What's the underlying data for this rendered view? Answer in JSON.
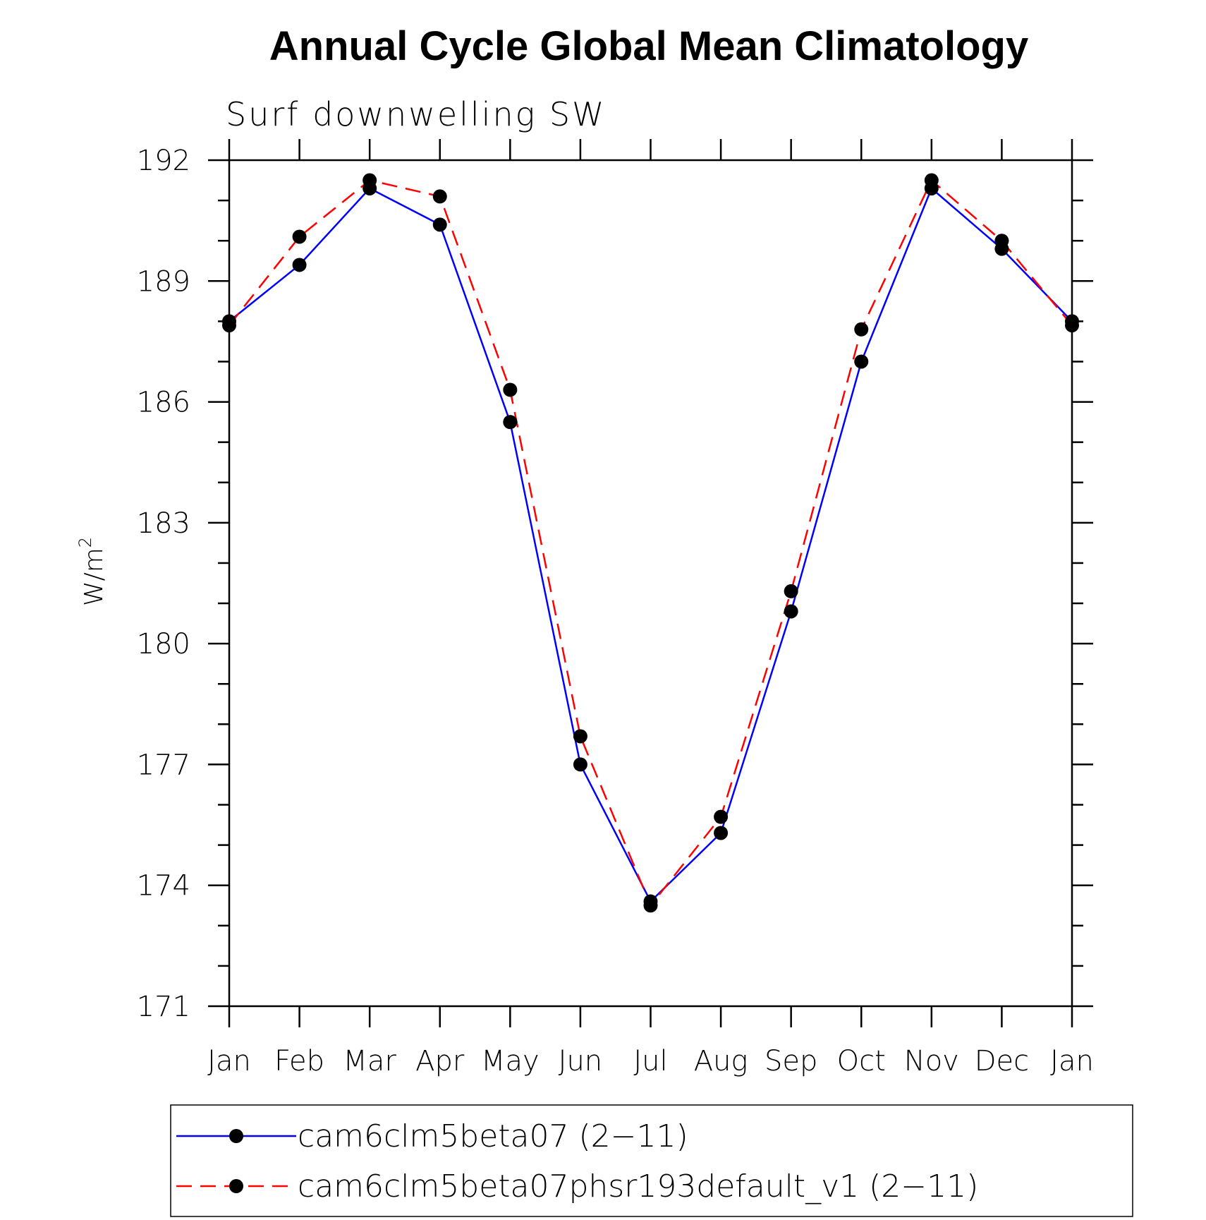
{
  "chart_data": {
    "type": "line",
    "title": "Annual Cycle Global Mean Climatology",
    "subtitle": "Surf downwelling SW",
    "ylabel": "W/m",
    "ylabel_superscript": "2",
    "xlabel": "",
    "categories": [
      "Jan",
      "Feb",
      "Mar",
      "Apr",
      "May",
      "Jun",
      "Jul",
      "Aug",
      "Sep",
      "Oct",
      "Nov",
      "Dec",
      "Jan"
    ],
    "ylim": [
      171,
      192
    ],
    "yticks": [
      171,
      174,
      177,
      180,
      183,
      186,
      189,
      192
    ],
    "yticks_minor_step": 1,
    "grid": false,
    "legend_position": "bottom",
    "series": [
      {
        "name": "cam6clm5beta07 (2−11)",
        "color": "#0000ff",
        "line_style": "solid",
        "marker_color": "#000000",
        "values": [
          188.0,
          189.4,
          191.3,
          190.4,
          185.5,
          177.0,
          173.6,
          175.3,
          180.8,
          187.0,
          191.3,
          189.8,
          188.0
        ]
      },
      {
        "name": "cam6clm5beta07phsr193default_v1 (2−11)",
        "color": "#ff0000",
        "line_style": "dashed",
        "marker_color": "#000000",
        "values": [
          187.9,
          190.1,
          191.5,
          191.1,
          186.3,
          177.7,
          173.5,
          175.7,
          181.3,
          187.8,
          191.5,
          190.0,
          187.9
        ]
      }
    ]
  }
}
